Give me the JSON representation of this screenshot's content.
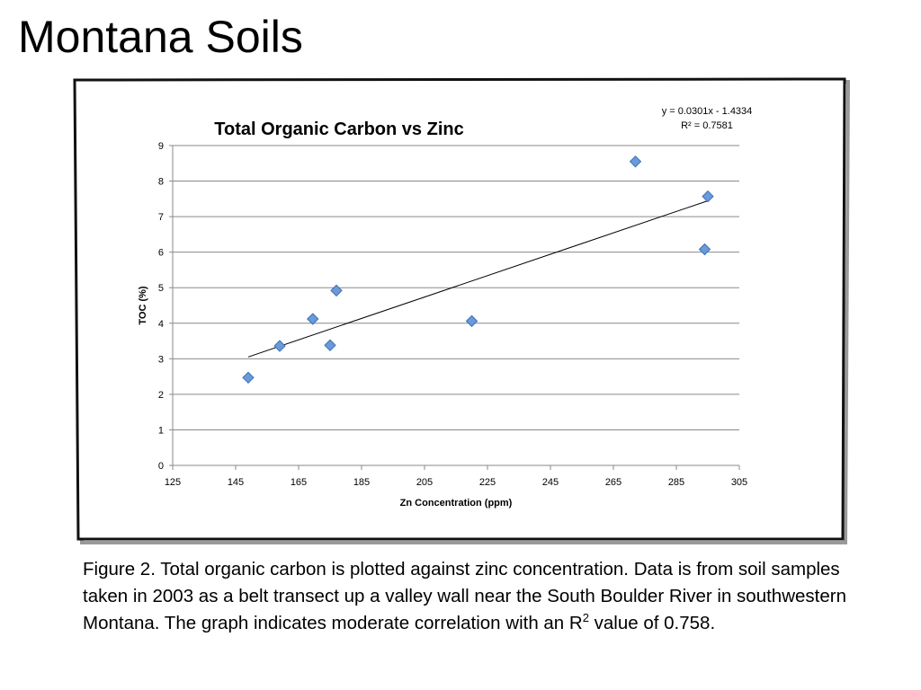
{
  "slide": {
    "title": "Montana Soils"
  },
  "caption": {
    "text_before": "Figure 2. Total organic carbon is plotted against zinc concentration. Data is from soil samples taken in 2003 as a belt transect up a valley wall near the South Boulder River in southwestern Montana. The graph indicates moderate correlation with an R",
    "superscript": "2",
    "text_after": " value of 0.758."
  },
  "chart_data": {
    "type": "scatter",
    "title": "Total Organic Carbon vs Zinc",
    "xlabel": "Zn Concentration (ppm)",
    "ylabel": "TOC (%)",
    "xlim": [
      125,
      305
    ],
    "ylim": [
      0,
      9
    ],
    "xticks": [
      125,
      145,
      165,
      185,
      205,
      225,
      245,
      265,
      285,
      305
    ],
    "yticks": [
      0,
      1,
      2,
      3,
      4,
      5,
      6,
      7,
      8,
      9
    ],
    "grid": "horizontal",
    "marker": "diamond",
    "colors": {
      "marker_fill": "#6a9ad8",
      "marker_stroke": "#3d6fb6",
      "grid": "#8a8a8a",
      "trendline": "#000000"
    },
    "points": [
      {
        "x": 149,
        "y": 2.47
      },
      {
        "x": 159,
        "y": 3.36
      },
      {
        "x": 169.5,
        "y": 4.12
      },
      {
        "x": 175,
        "y": 3.38
      },
      {
        "x": 177,
        "y": 4.92
      },
      {
        "x": 220,
        "y": 4.06
      },
      {
        "x": 272,
        "y": 8.55
      },
      {
        "x": 294,
        "y": 6.08
      },
      {
        "x": 295,
        "y": 7.57
      }
    ],
    "trendline": {
      "type": "linear",
      "x_range": [
        149,
        295
      ],
      "slope": 0.0301,
      "intercept": -1.4334,
      "equation": "y = 0.0301x - 1.4334",
      "r2_label": "R² = 0.7581"
    }
  }
}
